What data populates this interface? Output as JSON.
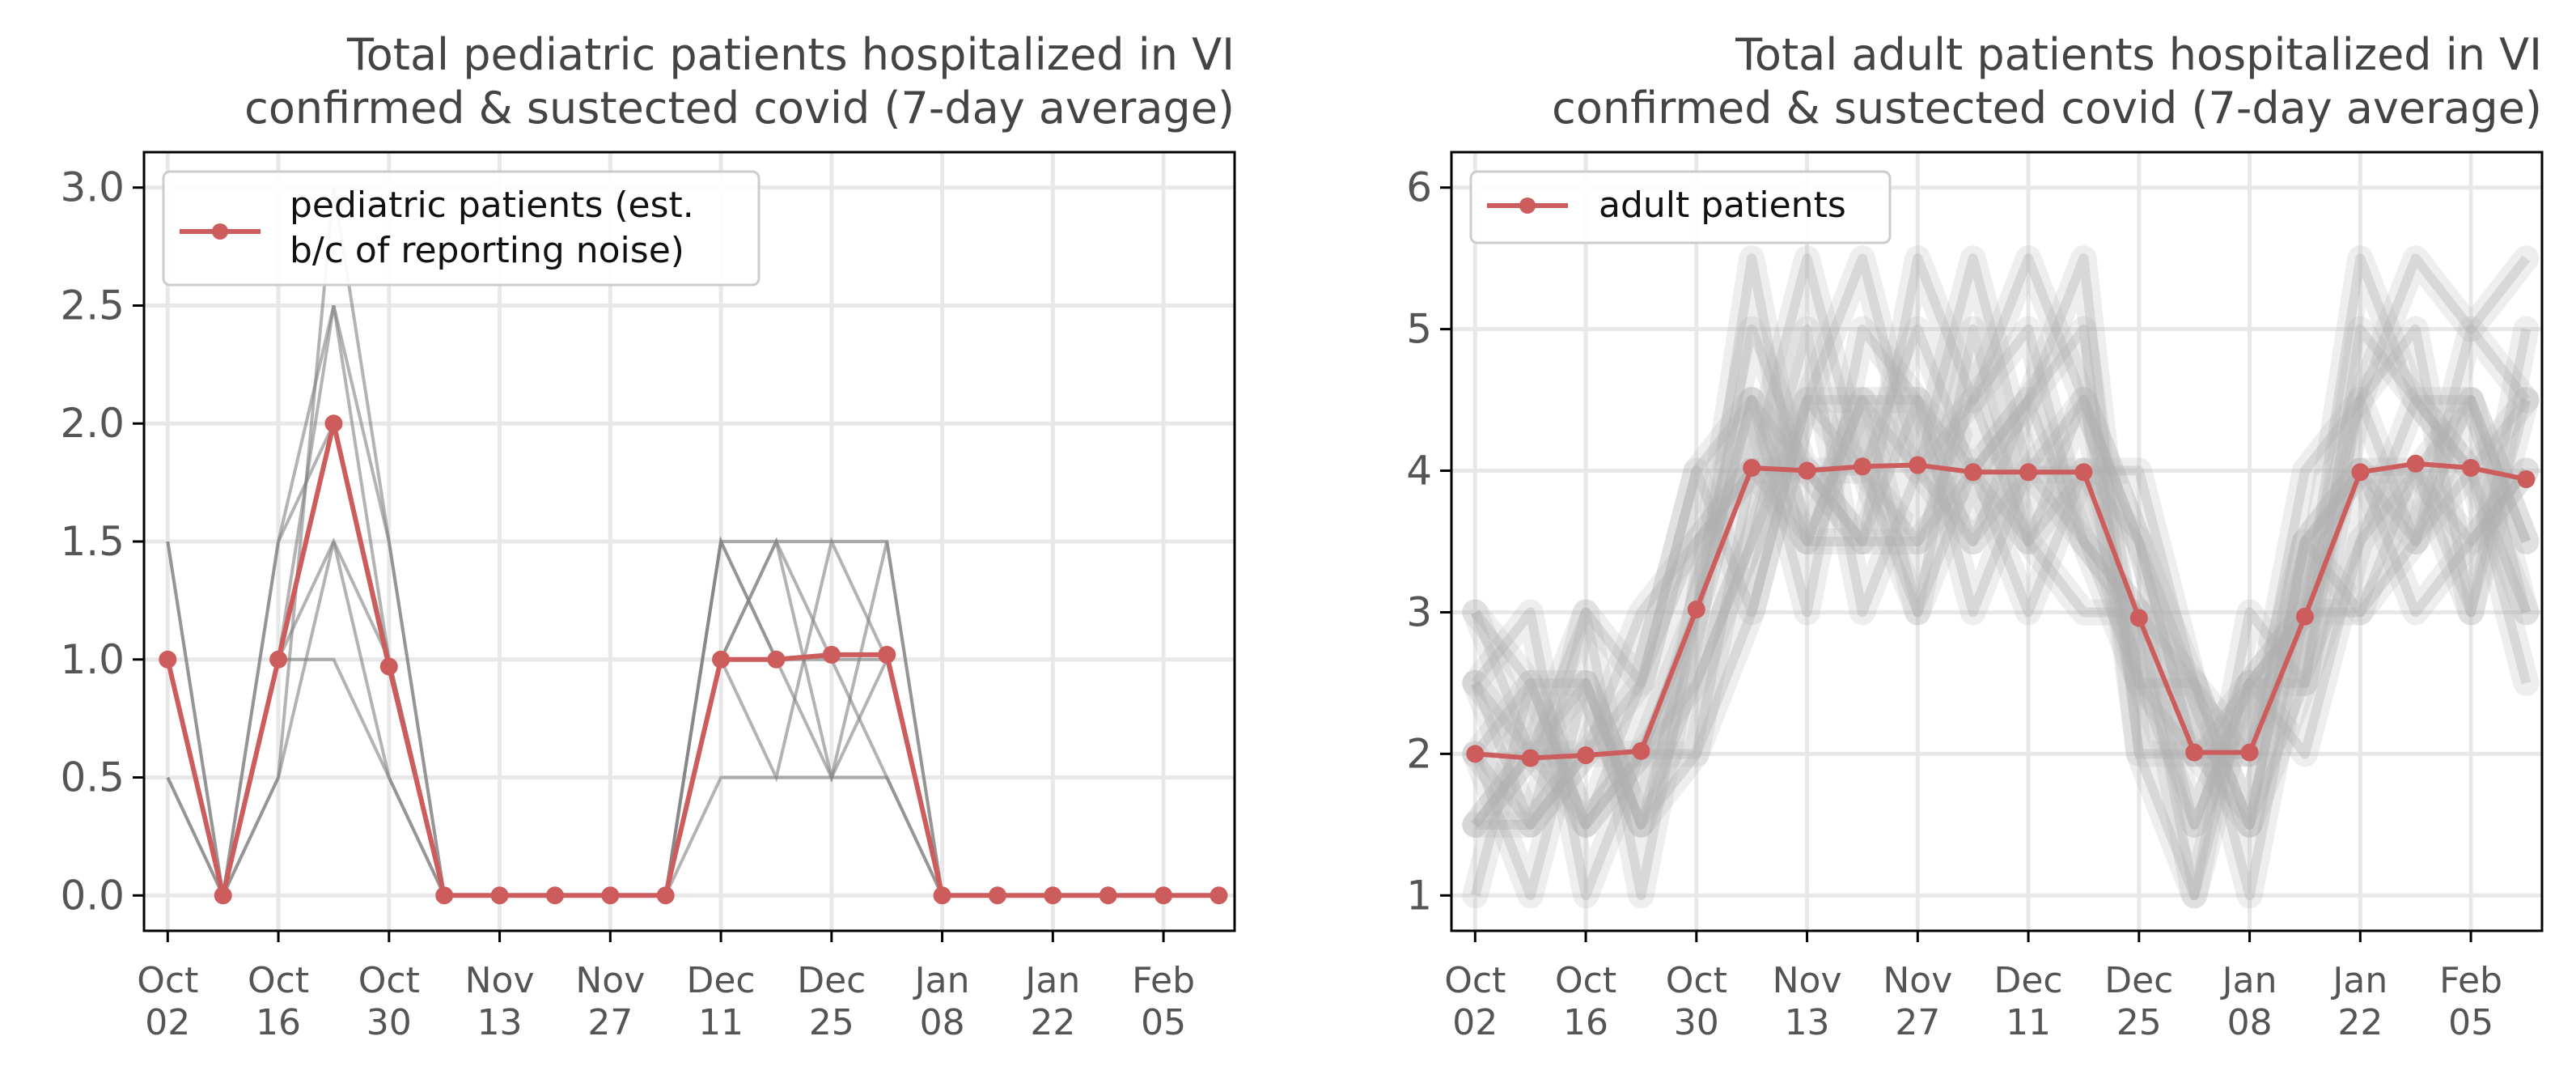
{
  "colors": {
    "mean": "#cd5c5c",
    "trajectory": "#808080",
    "faint": "#b0b0b0",
    "grid": "#e8e8e8",
    "frame": "#000000"
  },
  "chart_data": [
    {
      "type": "line",
      "title_line1": "Total pediatric patients hospitalized in VI",
      "title_line2": "confirmed & sustected covid (7-day average)",
      "xlabel": "",
      "ylabel": "",
      "x": [
        "2021-10-02",
        "2021-10-09",
        "2021-10-16",
        "2021-10-23",
        "2021-10-30",
        "2021-11-06",
        "2021-11-13",
        "2021-11-20",
        "2021-11-27",
        "2021-12-04",
        "2021-12-11",
        "2021-12-18",
        "2021-12-25",
        "2022-01-01",
        "2022-01-08",
        "2022-01-15",
        "2022-01-22",
        "2022-01-29",
        "2022-02-05",
        "2022-02-12"
      ],
      "xlim": [
        "2021-09-29",
        "2022-02-14"
      ],
      "ylim": [
        -0.15,
        3.15
      ],
      "yticks": [
        "0.0",
        "0.5",
        "1.0",
        "1.5",
        "2.0",
        "2.5",
        "3.0"
      ],
      "xticks": [
        {
          "date": "2021-10-02",
          "line1": "Oct",
          "line2": "02"
        },
        {
          "date": "2021-10-16",
          "line1": "Oct",
          "line2": "16"
        },
        {
          "date": "2021-10-30",
          "line1": "Oct",
          "line2": "30"
        },
        {
          "date": "2021-11-13",
          "line1": "Nov",
          "line2": "13"
        },
        {
          "date": "2021-11-27",
          "line1": "Nov",
          "line2": "27"
        },
        {
          "date": "2021-12-11",
          "line1": "Dec",
          "line2": "11"
        },
        {
          "date": "2021-12-25",
          "line1": "Dec",
          "line2": "25"
        },
        {
          "date": "2022-01-08",
          "line1": "Jan",
          "line2": "08"
        },
        {
          "date": "2022-01-22",
          "line1": "Jan",
          "line2": "22"
        },
        {
          "date": "2022-02-05",
          "line1": "Feb",
          "line2": "05"
        }
      ],
      "grid": true,
      "legend_position": "upper-left",
      "series": [
        {
          "name": "pediatric patients (est. b/c of reporting noise)",
          "legend_line1": "pediatric patients (est.",
          "legend_line2": "b/c of reporting noise)",
          "role": "mean",
          "values": [
            1.0,
            0.0,
            1.0,
            2.0,
            0.97,
            0.0,
            0.0,
            0.0,
            0.0,
            0.0,
            1.0,
            1.0,
            1.02,
            1.02,
            0.0,
            0.0,
            0.0,
            0.0,
            0.0,
            0.0
          ]
        }
      ],
      "trajectories": [
        {
          "role": "sample",
          "values": [
            1.5,
            0.0,
            1.0,
            2.5,
            1.5,
            0.0,
            0,
            0,
            0,
            0,
            1.5,
            1.5,
            1.5,
            1.5,
            0,
            0,
            0,
            0,
            0,
            0
          ]
        },
        {
          "role": "sample",
          "values": [
            0.5,
            0.0,
            1.5,
            2.0,
            1.0,
            0.0,
            0,
            0,
            0,
            0,
            0.5,
            0.5,
            0.5,
            0.5,
            0,
            0,
            0,
            0,
            0,
            0
          ]
        },
        {
          "role": "sample",
          "values": [
            1.0,
            0.0,
            0.5,
            1.5,
            0.5,
            0.0,
            0,
            0,
            0,
            0,
            1.0,
            1.5,
            1.0,
            1.0,
            0,
            0,
            0,
            0,
            0,
            0
          ]
        },
        {
          "role": "sample",
          "values": [
            1.0,
            0.0,
            1.0,
            1.0,
            0.5,
            0.0,
            0,
            0,
            0,
            0,
            1.5,
            1.0,
            0.5,
            1.5,
            0,
            0,
            0,
            0,
            0,
            0
          ]
        },
        {
          "role": "sample",
          "values": [
            1.5,
            0.0,
            1.5,
            2.5,
            1.0,
            0.0,
            0,
            0,
            0,
            0,
            1.0,
            0.5,
            1.5,
            1.0,
            0,
            0,
            0,
            0,
            0,
            0
          ]
        },
        {
          "role": "sample",
          "values": [
            0.5,
            0.0,
            0.5,
            3.0,
            1.5,
            0.0,
            0,
            0,
            0,
            0,
            1.5,
            1.0,
            1.0,
            0.5,
            0,
            0,
            0,
            0,
            0,
            0
          ]
        },
        {
          "role": "sample",
          "values": [
            1.0,
            0.0,
            1.0,
            1.5,
            1.0,
            0.0,
            0,
            0,
            0,
            0,
            1.0,
            1.5,
            0.5,
            1.0,
            0,
            0,
            0,
            0,
            0,
            0
          ]
        }
      ]
    },
    {
      "type": "line",
      "title_line1": "Total adult patients hospitalized in VI",
      "title_line2": "confirmed & sustected covid (7-day average)",
      "xlabel": "",
      "ylabel": "",
      "x": [
        "2021-10-02",
        "2021-10-09",
        "2021-10-16",
        "2021-10-23",
        "2021-10-30",
        "2021-11-06",
        "2021-11-13",
        "2021-11-20",
        "2021-11-27",
        "2021-12-04",
        "2021-12-11",
        "2021-12-18",
        "2021-12-25",
        "2022-01-01",
        "2022-01-08",
        "2022-01-15",
        "2022-01-22",
        "2022-01-29",
        "2022-02-05",
        "2022-02-12"
      ],
      "xlim": [
        "2021-09-29",
        "2022-02-14"
      ],
      "ylim": [
        0.75,
        6.25
      ],
      "yticks": [
        "1",
        "2",
        "3",
        "4",
        "5",
        "6"
      ],
      "xticks": [
        {
          "date": "2021-10-02",
          "line1": "Oct",
          "line2": "02"
        },
        {
          "date": "2021-10-16",
          "line1": "Oct",
          "line2": "16"
        },
        {
          "date": "2021-10-30",
          "line1": "Oct",
          "line2": "30"
        },
        {
          "date": "2021-11-13",
          "line1": "Nov",
          "line2": "13"
        },
        {
          "date": "2021-11-27",
          "line1": "Nov",
          "line2": "27"
        },
        {
          "date": "2021-12-11",
          "line1": "Dec",
          "line2": "11"
        },
        {
          "date": "2021-12-25",
          "line1": "Dec",
          "line2": "25"
        },
        {
          "date": "2022-01-08",
          "line1": "Jan",
          "line2": "08"
        },
        {
          "date": "2022-01-22",
          "line1": "Jan",
          "line2": "22"
        },
        {
          "date": "2022-02-05",
          "line1": "Feb",
          "line2": "05"
        }
      ],
      "grid": true,
      "legend_position": "upper-left",
      "series": [
        {
          "name": "adult patients",
          "legend_line1": "adult patients",
          "legend_line2": "",
          "role": "mean",
          "values": [
            2.0,
            1.97,
            1.99,
            2.02,
            3.02,
            4.02,
            4.0,
            4.03,
            4.04,
            3.99,
            3.99,
            3.99,
            2.96,
            2.01,
            2.01,
            2.97,
            3.99,
            4.05,
            4.02,
            3.94
          ]
        }
      ],
      "trajectories": [
        {
          "role": "sample",
          "values": [
            2.0,
            2.5,
            1.5,
            2.0,
            3.0,
            4.5,
            4.0,
            3.5,
            4.5,
            4.0,
            4.5,
            3.5,
            3.0,
            1.5,
            2.5,
            3.0,
            4.5,
            3.5,
            4.0,
            4.5
          ]
        },
        {
          "role": "sample",
          "values": [
            1.5,
            2.0,
            2.5,
            1.5,
            2.5,
            3.5,
            4.5,
            4.0,
            3.5,
            4.5,
            3.5,
            4.5,
            2.5,
            2.0,
            1.5,
            2.5,
            3.5,
            4.5,
            4.5,
            3.5
          ]
        },
        {
          "role": "sample",
          "values": [
            2.5,
            1.5,
            2.0,
            2.5,
            3.5,
            4.0,
            3.5,
            4.5,
            4.0,
            3.5,
            4.0,
            4.0,
            3.5,
            2.5,
            2.0,
            3.5,
            4.0,
            4.0,
            3.5,
            4.0
          ]
        },
        {
          "role": "sample",
          "values": [
            3.0,
            2.0,
            1.5,
            2.0,
            3.0,
            5.0,
            4.0,
            4.0,
            5.0,
            4.0,
            4.5,
            5.0,
            2.0,
            1.0,
            2.5,
            2.5,
            5.0,
            4.5,
            4.0,
            3.0
          ]
        },
        {
          "role": "sample",
          "values": [
            1.0,
            2.5,
            2.5,
            1.5,
            2.0,
            3.0,
            4.5,
            4.5,
            3.0,
            5.0,
            3.5,
            3.0,
            3.0,
            2.5,
            1.0,
            3.0,
            3.0,
            3.5,
            5.0,
            4.5
          ]
        },
        {
          "role": "sample",
          "values": [
            2.0,
            1.5,
            3.0,
            2.5,
            4.0,
            4.5,
            3.0,
            5.0,
            4.5,
            3.0,
            4.0,
            4.5,
            3.5,
            2.0,
            2.0,
            4.0,
            4.5,
            5.0,
            3.0,
            5.0
          ]
        },
        {
          "role": "sample",
          "values": [
            2.5,
            3.0,
            1.0,
            2.0,
            2.5,
            3.5,
            5.0,
            3.0,
            4.0,
            4.5,
            5.0,
            3.5,
            2.5,
            1.5,
            2.5,
            2.0,
            3.5,
            4.0,
            4.5,
            3.5
          ]
        },
        {
          "role": "sample",
          "values": [
            1.5,
            2.0,
            2.0,
            3.0,
            3.5,
            4.0,
            4.0,
            3.5,
            3.5,
            4.0,
            3.0,
            4.0,
            4.0,
            2.5,
            1.5,
            3.5,
            4.0,
            3.0,
            3.5,
            4.0
          ]
        },
        {
          "role": "sample",
          "values": [
            2.0,
            1.0,
            2.5,
            1.5,
            3.0,
            5.5,
            3.5,
            4.5,
            4.5,
            3.5,
            4.5,
            5.5,
            2.0,
            2.0,
            2.0,
            3.0,
            5.5,
            4.5,
            4.0,
            2.5
          ]
        },
        {
          "role": "sample",
          "values": [
            3.0,
            2.5,
            1.5,
            2.5,
            4.0,
            3.0,
            4.5,
            5.5,
            4.0,
            5.5,
            4.0,
            3.5,
            3.0,
            1.0,
            3.0,
            2.5,
            4.5,
            5.5,
            5.0,
            5.5
          ]
        },
        {
          "role": "sample",
          "values": [
            1.5,
            1.5,
            2.0,
            2.0,
            2.0,
            4.0,
            5.5,
            4.0,
            3.0,
            4.0,
            3.5,
            4.0,
            2.5,
            2.5,
            1.5,
            3.5,
            3.0,
            4.0,
            3.0,
            4.5
          ]
        },
        {
          "role": "sample",
          "values": [
            2.5,
            2.0,
            3.0,
            1.0,
            3.0,
            4.5,
            3.5,
            3.5,
            5.5,
            4.5,
            5.5,
            4.5,
            3.5,
            2.0,
            2.5,
            3.0,
            4.0,
            3.5,
            4.5,
            3.0
          ]
        }
      ]
    }
  ]
}
